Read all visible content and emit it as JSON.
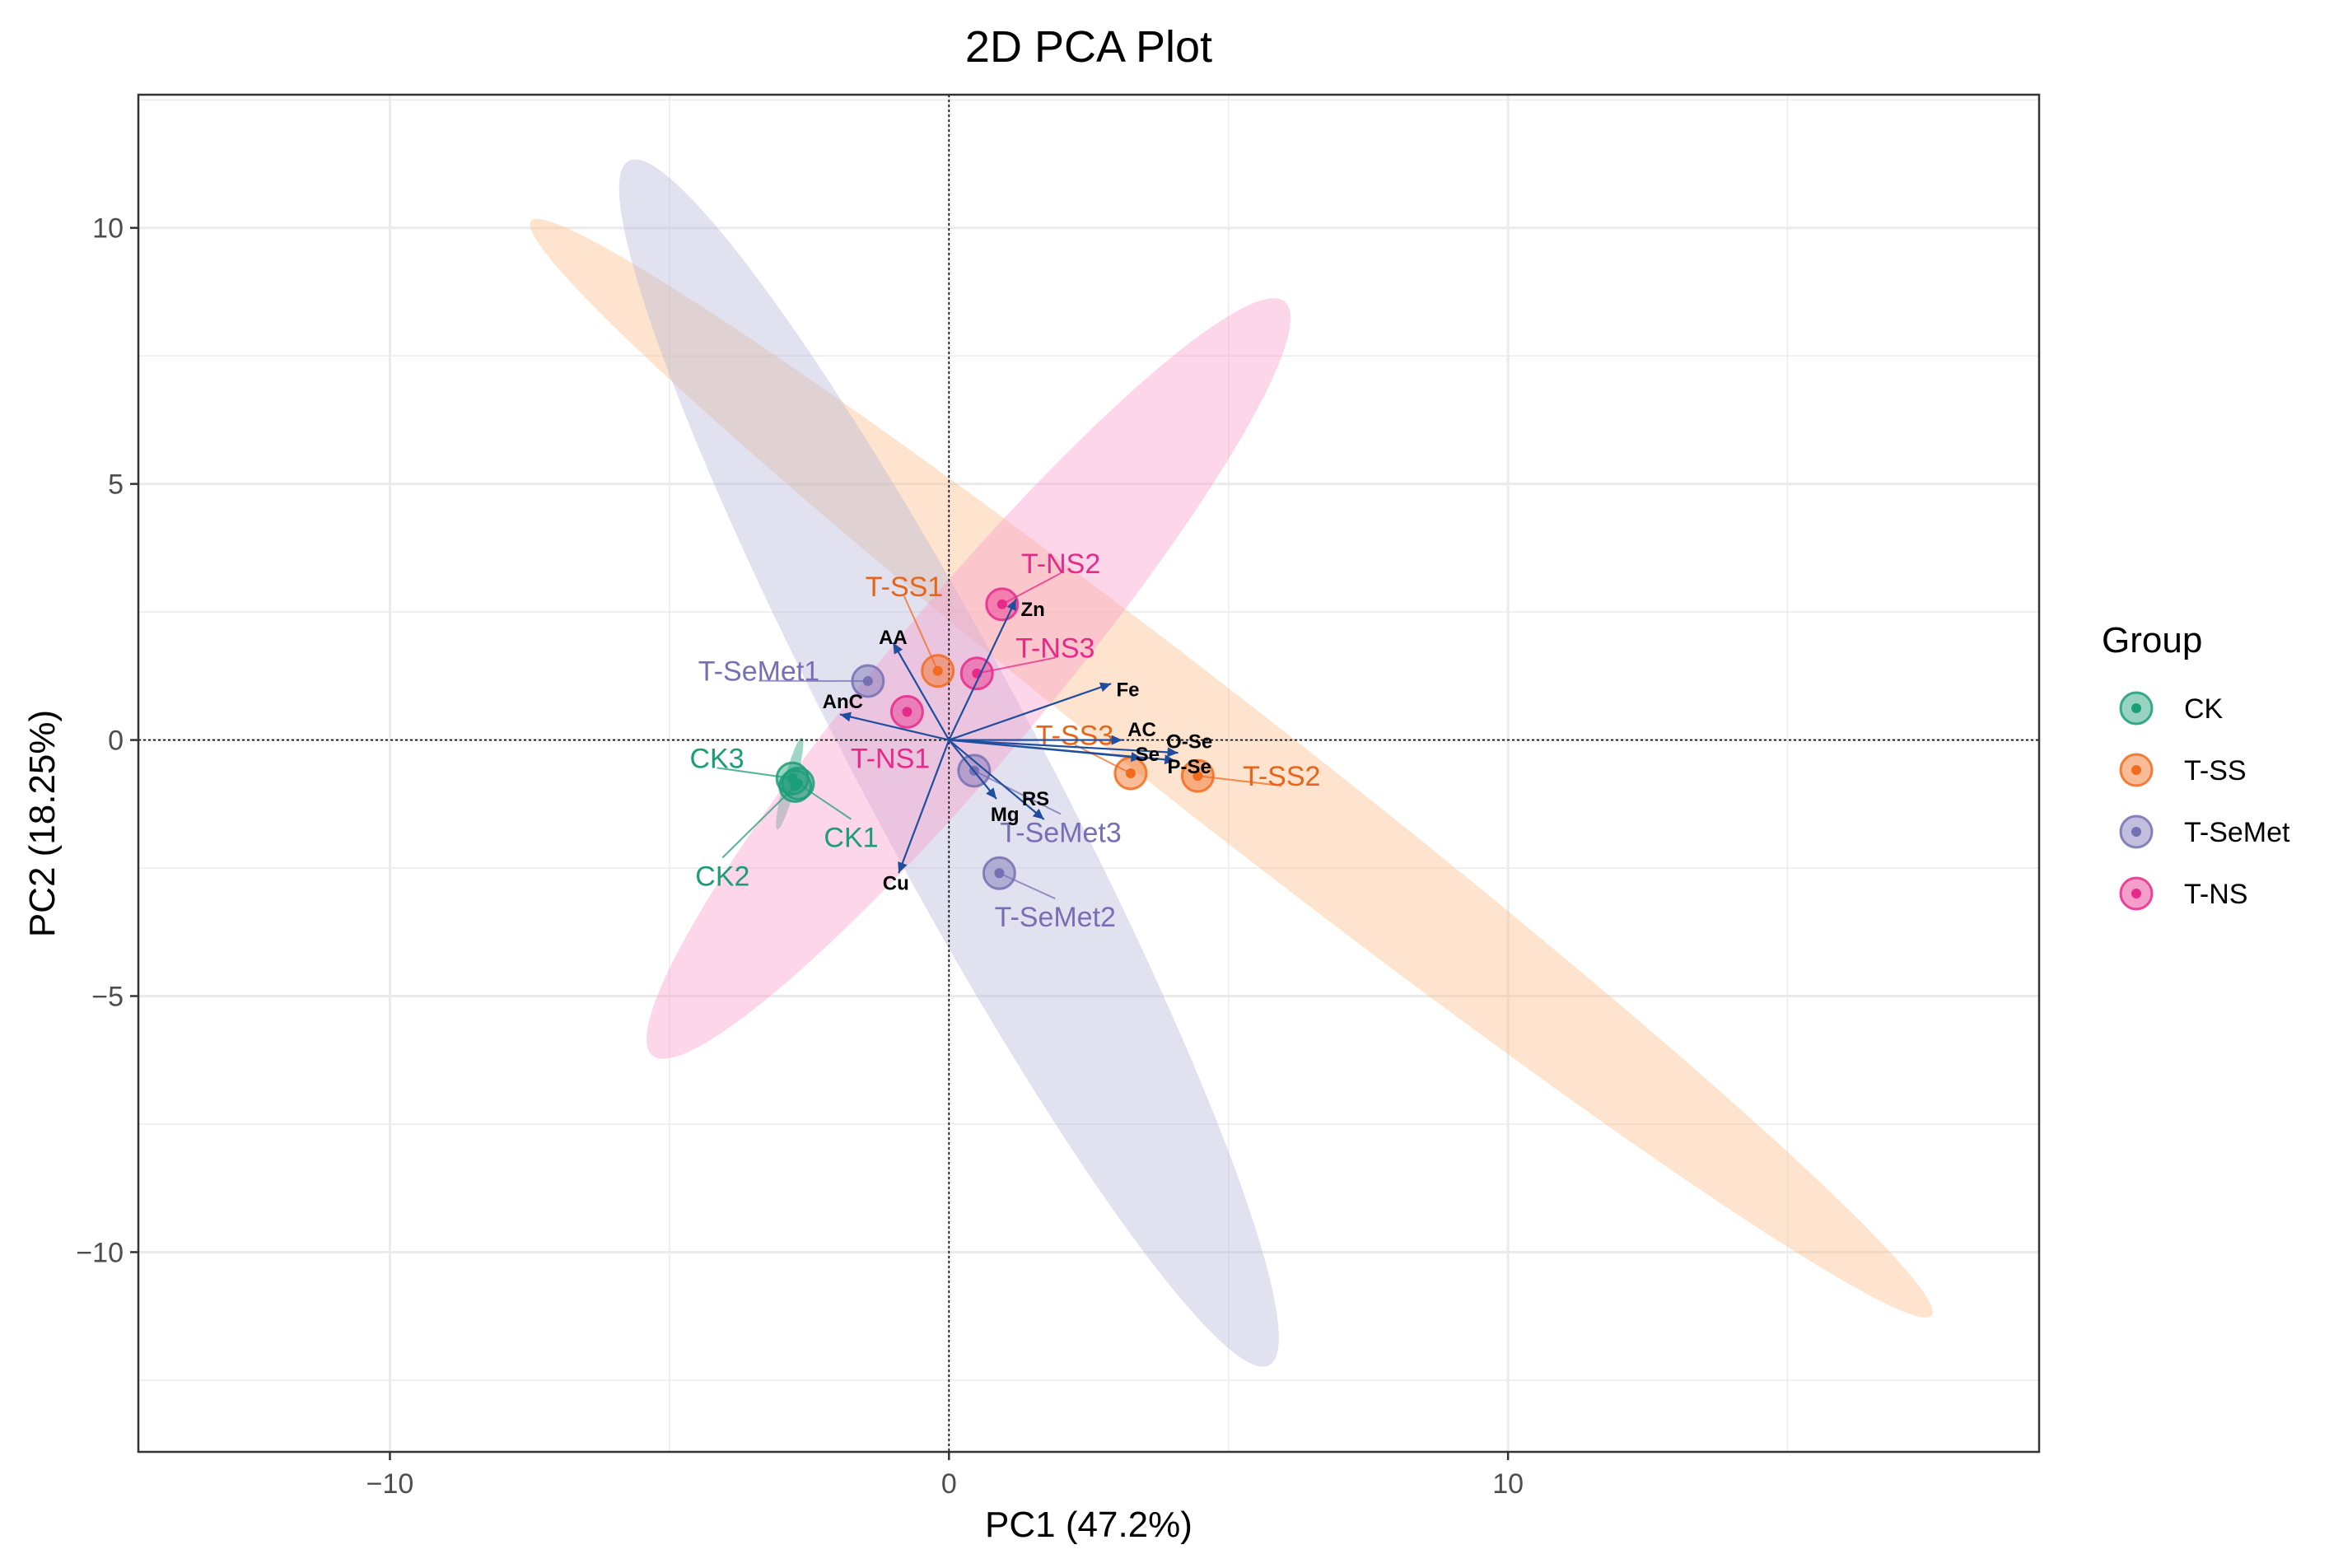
{
  "chart_data": {
    "type": "scatter",
    "title": "2D PCA Plot",
    "xlabel": "PC1 (47.2%)",
    "ylabel": "PC2 (18.25%)",
    "xlim": [
      -14.5,
      19.5
    ],
    "ylim": [
      -13.9,
      12.6
    ],
    "xticks": [
      -10,
      0,
      10
    ],
    "xtick_labels": [
      "−10",
      "0",
      "10"
    ],
    "yticks": [
      -10,
      -5,
      0,
      5,
      10
    ],
    "ytick_labels": [
      "−10",
      "−5",
      "0",
      "5",
      "10"
    ],
    "grid": true,
    "legend_title": "Group",
    "legend_position": "right",
    "groups": [
      {
        "name": "CK",
        "color": "#1b9e77",
        "fill": "#1b9e77",
        "label_color": "#1b9e77"
      },
      {
        "name": "T-SS",
        "color": "#f26b1d",
        "fill": "#fdbf8a",
        "label_color": "#e8641b"
      },
      {
        "name": "T-SeMet",
        "color": "#7570b3",
        "fill": "#b8b8d8",
        "label_color": "#7570b3"
      },
      {
        "name": "T-NS",
        "color": "#e7298a",
        "fill": "#fb9fcb",
        "label_color": "#e7298a"
      }
    ],
    "ellipses": [
      {
        "group": "CK",
        "cx": -2.85,
        "cy": -0.85,
        "rx": 0.85,
        "ry": 0.12,
        "angle_deg": 75
      },
      {
        "group": "T-SS",
        "cx": 5.05,
        "cy": -0.55,
        "rx": 15.9,
        "ry": 1.2,
        "angle_deg": -38
      },
      {
        "group": "T-SeMet",
        "cx": 0.0,
        "cy": -0.45,
        "rx": 12.2,
        "ry": 1.75,
        "angle_deg": -62
      },
      {
        "group": "T-NS",
        "cx": 0.35,
        "cy": 1.2,
        "rx": 8.8,
        "ry": 1.55,
        "angle_deg": 50
      }
    ],
    "points": [
      {
        "label": "CK1",
        "group": "CK",
        "x": -2.7,
        "y": -0.85,
        "lx": -1.75,
        "ly": -1.9
      },
      {
        "label": "CK2",
        "group": "CK",
        "x": -2.75,
        "y": -0.9,
        "lx": -4.05,
        "ly": -2.65
      },
      {
        "label": "CK3",
        "group": "CK",
        "x": -2.8,
        "y": -0.75,
        "lx": -4.15,
        "ly": -0.35
      },
      {
        "label": "T-SS1",
        "group": "T-SS",
        "x": -0.2,
        "y": 1.35,
        "lx": -0.8,
        "ly": 3.0
      },
      {
        "label": "T-SS2",
        "group": "T-SS",
        "x": 4.45,
        "y": -0.7,
        "lx": 5.95,
        "ly": -0.7
      },
      {
        "label": "T-SS3",
        "group": "T-SS",
        "x": 3.25,
        "y": -0.65,
        "lx": 2.25,
        "ly": 0.1
      },
      {
        "label": "T-SeMet1",
        "group": "T-SeMet",
        "x": -1.45,
        "y": 1.15,
        "lx": -3.4,
        "ly": 1.35
      },
      {
        "label": "T-SeMet2",
        "group": "T-SeMet",
        "x": 0.9,
        "y": -2.6,
        "lx": 1.9,
        "ly": -3.45
      },
      {
        "label": "T-SeMet3",
        "group": "T-SeMet",
        "x": 0.45,
        "y": -0.6,
        "lx": 2.0,
        "ly": -1.8
      },
      {
        "label": "T-NS1",
        "group": "T-NS",
        "x": -0.75,
        "y": 0.55,
        "lx": -1.05,
        "ly": -0.35
      },
      {
        "label": "T-NS2",
        "group": "T-NS",
        "x": 0.95,
        "y": 2.65,
        "lx": 2.0,
        "ly": 3.45
      },
      {
        "label": "T-NS3",
        "group": "T-NS",
        "x": 0.5,
        "y": 1.3,
        "lx": 1.9,
        "ly": 1.8
      }
    ],
    "loadings": [
      {
        "label": "Zn",
        "x": 1.2,
        "y": 2.75,
        "lx": 1.5,
        "ly": 2.55
      },
      {
        "label": "AA",
        "x": -1.0,
        "y": 1.9,
        "lx": -1.0,
        "ly": 2.0
      },
      {
        "label": "AnC",
        "x": -1.95,
        "y": 0.5,
        "lx": -1.9,
        "ly": 0.75
      },
      {
        "label": "Fe",
        "x": 2.9,
        "y": 1.1,
        "lx": 3.2,
        "ly": 0.98
      },
      {
        "label": "AC",
        "x": 3.1,
        "y": 0.0,
        "lx": 3.45,
        "ly": 0.2
      },
      {
        "label": "O-Se",
        "x": 4.1,
        "y": -0.25,
        "lx": 4.3,
        "ly": -0.03
      },
      {
        "label": "Se",
        "x": 3.45,
        "y": -0.35,
        "lx": 3.55,
        "ly": -0.28
      },
      {
        "label": "P-Se",
        "x": 4.05,
        "y": -0.4,
        "lx": 4.3,
        "ly": -0.52
      },
      {
        "label": "RS",
        "x": 1.7,
        "y": -1.55,
        "lx": 1.55,
        "ly": -1.15
      },
      {
        "label": "Mg",
        "x": 0.85,
        "y": -1.15,
        "lx": 1.0,
        "ly": -1.45
      },
      {
        "label": "Cu",
        "x": -0.9,
        "y": -2.6,
        "lx": -0.95,
        "ly": -2.8
      }
    ]
  }
}
